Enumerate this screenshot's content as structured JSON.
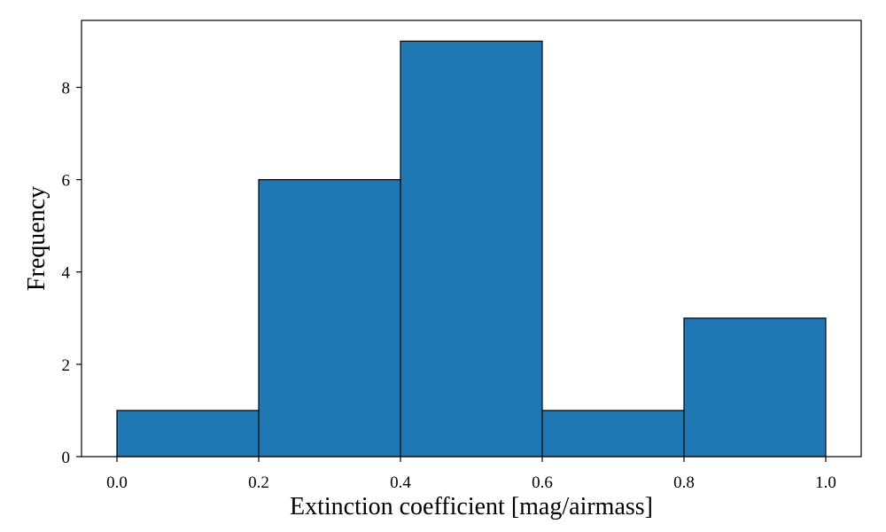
{
  "chart_data": {
    "type": "bar",
    "title": "",
    "xlabel": "Extinction coefficient [mag/airmass]",
    "ylabel": "Frequency",
    "bins": [
      {
        "start": 0.0,
        "end": 0.2,
        "value": 1
      },
      {
        "start": 0.2,
        "end": 0.4,
        "value": 6
      },
      {
        "start": 0.4,
        "end": 0.6,
        "value": 9
      },
      {
        "start": 0.6,
        "end": 0.8,
        "value": 1
      },
      {
        "start": 0.8,
        "end": 1.0,
        "value": 3
      }
    ],
    "xlim": [
      -0.05,
      1.05
    ],
    "ylim": [
      0,
      9.45
    ],
    "xticks": [
      0.0,
      0.2,
      0.4,
      0.6,
      0.8,
      1.0
    ],
    "xtick_labels": [
      "0.0",
      "0.2",
      "0.4",
      "0.6",
      "0.8",
      "1.0"
    ],
    "yticks": [
      0,
      2,
      4,
      6,
      8
    ],
    "ytick_labels": [
      "0",
      "2",
      "4",
      "6",
      "8"
    ],
    "grid": false,
    "legend": "none",
    "colors": {
      "bar_fill": "#1f77b4",
      "bar_edge": "#000000"
    }
  }
}
